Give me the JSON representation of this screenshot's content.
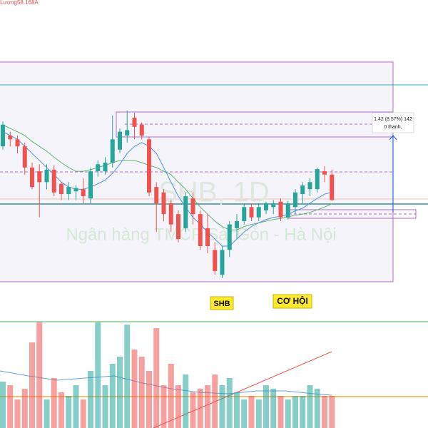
{
  "chart_data": {
    "type": "candlestick",
    "top_label": "Lượng58.168A",
    "watermark_ticker": "SHB, 1D",
    "watermark_name": "Ngân hàng TMCP Sài Gòn - Hà Nội",
    "label_ticker": "SHB",
    "label_opportunity": "CƠ HỘI",
    "measure_text": "1.42 (8.57%) 142",
    "measure_bars": "0 thanh,",
    "up_color": "#26a69a",
    "down_color": "#ef5350",
    "ylim": [
      14.7,
      20.49
    ],
    "vlim": [
      0,
      150
    ],
    "open": [
      17.79,
      17.99,
      17.92,
      17.79,
      17.4,
      17.33,
      17.13,
      17.36,
      17.1,
      16.91,
      16.96,
      17.0,
      16.83,
      17.33,
      17.33,
      17.49,
      17.73,
      17.99,
      18.32,
      18.19,
      17.92,
      17.04,
      16.94,
      16.74,
      16.54,
      16.28,
      16.83,
      16.54,
      16.28,
      15.88,
      15.42,
      15.88,
      16.28,
      16.41,
      16.67,
      16.48,
      16.61,
      16.67,
      16.77,
      16.48,
      16.67,
      16.91,
      17.0,
      17.0,
      17.33,
      17.27
    ],
    "close": [
      18.19,
      17.92,
      17.79,
      17.4,
      17.04,
      17.13,
      17.36,
      16.94,
      16.91,
      17.04,
      17.02,
      16.87,
      17.33,
      17.46,
      17.49,
      17.92,
      18.06,
      18.09,
      18.15,
      17.99,
      16.94,
      16.74,
      16.54,
      16.35,
      16.08,
      16.87,
      16.54,
      15.95,
      15.95,
      15.49,
      15.88,
      16.35,
      16.41,
      16.67,
      16.48,
      16.67,
      16.74,
      16.74,
      16.48,
      16.74,
      16.94,
      17.07,
      17.13,
      17.37,
      17.27,
      16.8
    ],
    "high": [
      18.25,
      18.06,
      17.99,
      17.86,
      17.49,
      17.46,
      17.46,
      17.44,
      17.13,
      17.13,
      17.07,
      17.2,
      17.4,
      17.53,
      17.59,
      18.36,
      18.12,
      18.45,
      18.41,
      18.23,
      17.96,
      17.13,
      17.0,
      16.8,
      16.61,
      16.94,
      16.94,
      16.61,
      16.54,
      16.02,
      15.95,
      16.41,
      16.54,
      16.74,
      16.74,
      16.74,
      16.77,
      16.8,
      16.83,
      16.78,
      17.0,
      17.13,
      17.2,
      17.4,
      17.42,
      17.36
    ],
    "low": [
      17.73,
      17.79,
      17.66,
      17.27,
      17.0,
      16.48,
      17.0,
      16.87,
      16.8,
      16.8,
      16.8,
      16.74,
      16.74,
      17.23,
      17.27,
      17.4,
      17.66,
      17.86,
      17.92,
      17.92,
      16.87,
      16.21,
      16.41,
      16.21,
      16.02,
      16.21,
      16.35,
      15.88,
      15.82,
      15.42,
      15.36,
      15.75,
      16.08,
      16.35,
      16.41,
      16.41,
      16.54,
      16.54,
      16.41,
      16.44,
      16.54,
      16.74,
      16.87,
      16.94,
      17.13,
      16.78
    ],
    "ma_fast": [
      18.06,
      17.99,
      17.92,
      17.79,
      17.66,
      17.53,
      17.4,
      17.27,
      17.13,
      17.04,
      17.0,
      17.0,
      17.04,
      17.1,
      17.17,
      17.29,
      17.46,
      17.66,
      17.79,
      17.86,
      17.79,
      17.66,
      17.4,
      17.13,
      16.87,
      16.67,
      16.48,
      16.35,
      16.21,
      16.08,
      15.95,
      15.95,
      16.08,
      16.21,
      16.31,
      16.38,
      16.44,
      16.48,
      16.5,
      16.54,
      16.6,
      16.65,
      16.74,
      16.83,
      16.91,
      16.94
    ],
    "ma_slow": [
      18.19,
      18.12,
      18.06,
      17.99,
      17.88,
      17.79,
      17.7,
      17.59,
      17.49,
      17.4,
      17.33,
      17.33,
      17.36,
      17.4,
      17.44,
      17.49,
      17.53,
      17.53,
      17.53,
      17.49,
      17.44,
      17.4,
      17.33,
      17.27,
      17.13,
      17.0,
      16.83,
      16.67,
      16.54,
      16.41,
      16.31,
      16.25,
      16.25,
      16.31,
      16.35,
      16.38,
      16.41,
      16.44,
      16.46,
      16.49,
      16.52,
      16.54,
      16.57,
      16.62,
      16.67,
      16.73
    ],
    "volume": [
      65,
      60,
      40,
      55,
      120,
      148,
      40,
      70,
      50,
      45,
      60,
      40,
      80,
      148,
      60,
      90,
      100,
      145,
      110,
      100,
      80,
      140,
      60,
      90,
      60,
      75,
      50,
      55,
      60,
      75,
      60,
      70,
      50,
      40,
      45,
      40,
      60,
      55,
      45,
      40,
      45,
      45,
      60,
      55,
      45,
      45
    ]
  }
}
